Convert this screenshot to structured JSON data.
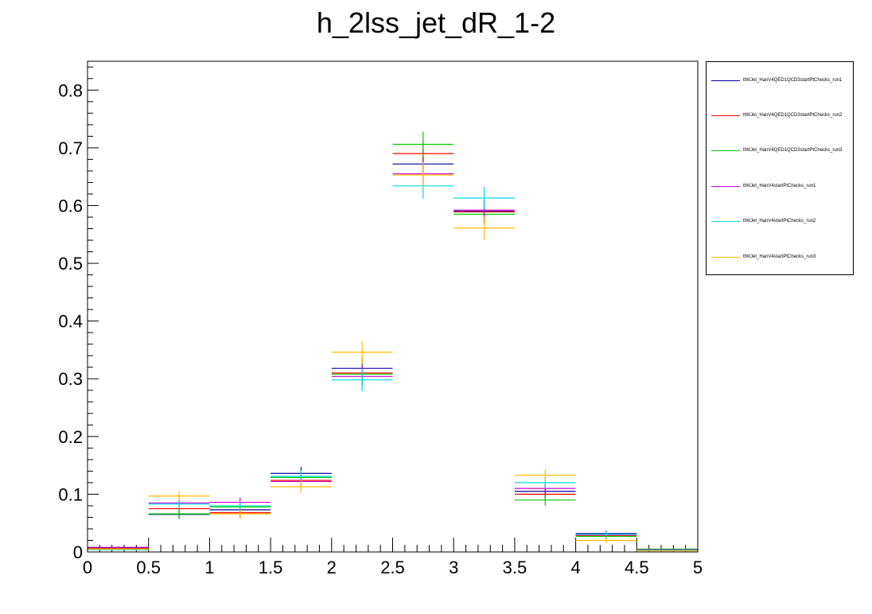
{
  "chart_data": {
    "type": "step-histogram",
    "title": "h_2lss_jet_dR_1-2",
    "xlabel": "",
    "ylabel": "",
    "xlim": [
      0,
      5
    ],
    "ylim": [
      0,
      0.85
    ],
    "bin_edges": [
      0,
      0.5,
      1,
      1.5,
      2,
      2.5,
      3,
      3.5,
      4,
      4.5,
      5
    ],
    "x_ticks": [
      "0",
      "0.5",
      "1",
      "1.5",
      "2",
      "2.5",
      "3",
      "3.5",
      "4",
      "4.5",
      "5"
    ],
    "y_ticks": [
      "0",
      "0.1",
      "0.2",
      "0.3",
      "0.4",
      "0.5",
      "0.6",
      "0.7",
      "0.8"
    ],
    "legend_position": "right, outside plot",
    "series": [
      {
        "name": "ttWJet_HanV4QED1QCD3startPtChecks_run1",
        "color": "#000099",
        "values": [
          0.007,
          0.065,
          0.073,
          0.136,
          0.318,
          0.672,
          0.59,
          0.105,
          0.032,
          0.003
        ],
        "errors": [
          0.002,
          0.008,
          0.008,
          0.011,
          0.019,
          0.022,
          0.02,
          0.01,
          0.005,
          0.001
        ]
      },
      {
        "name": "ttWJet_HanV4QED1QCD3startPtChecks_run2",
        "color": "#ff0000",
        "values": [
          0.006,
          0.075,
          0.068,
          0.124,
          0.31,
          0.69,
          0.589,
          0.1,
          0.028,
          0.004
        ],
        "errors": [
          0.002,
          0.008,
          0.008,
          0.011,
          0.019,
          0.022,
          0.02,
          0.01,
          0.005,
          0.001
        ]
      },
      {
        "name": "ttWJet_HanV4QED1QCD3startPtChecks_run3",
        "color": "#00cc00",
        "values": [
          0.005,
          0.066,
          0.078,
          0.129,
          0.308,
          0.706,
          0.585,
          0.09,
          0.027,
          0.005
        ],
        "errors": [
          0.002,
          0.008,
          0.008,
          0.011,
          0.019,
          0.022,
          0.02,
          0.01,
          0.005,
          0.001
        ]
      },
      {
        "name": "ttWJet_HanV4startPtChecks_run1",
        "color": "#cc00cc",
        "values": [
          0.008,
          0.085,
          0.086,
          0.122,
          0.304,
          0.655,
          0.592,
          0.11,
          0.03,
          0.004
        ],
        "errors": [
          0.002,
          0.008,
          0.008,
          0.011,
          0.019,
          0.022,
          0.02,
          0.01,
          0.005,
          0.001
        ]
      },
      {
        "name": "ttWJet_HanV4startPtChecks_run2",
        "color": "#00dddd",
        "values": [
          0.004,
          0.083,
          0.08,
          0.131,
          0.298,
          0.634,
          0.613,
          0.12,
          0.031,
          0.003
        ],
        "errors": [
          0.002,
          0.008,
          0.008,
          0.011,
          0.019,
          0.022,
          0.02,
          0.01,
          0.005,
          0.001
        ]
      },
      {
        "name": "ttWJet_HanV4startPtChecks_run3",
        "color": "#ffbb00",
        "values": [
          0.005,
          0.097,
          0.066,
          0.113,
          0.346,
          0.653,
          0.561,
          0.133,
          0.02,
          0.002
        ],
        "errors": [
          0.002,
          0.008,
          0.008,
          0.011,
          0.019,
          0.022,
          0.02,
          0.01,
          0.005,
          0.001
        ]
      }
    ]
  }
}
